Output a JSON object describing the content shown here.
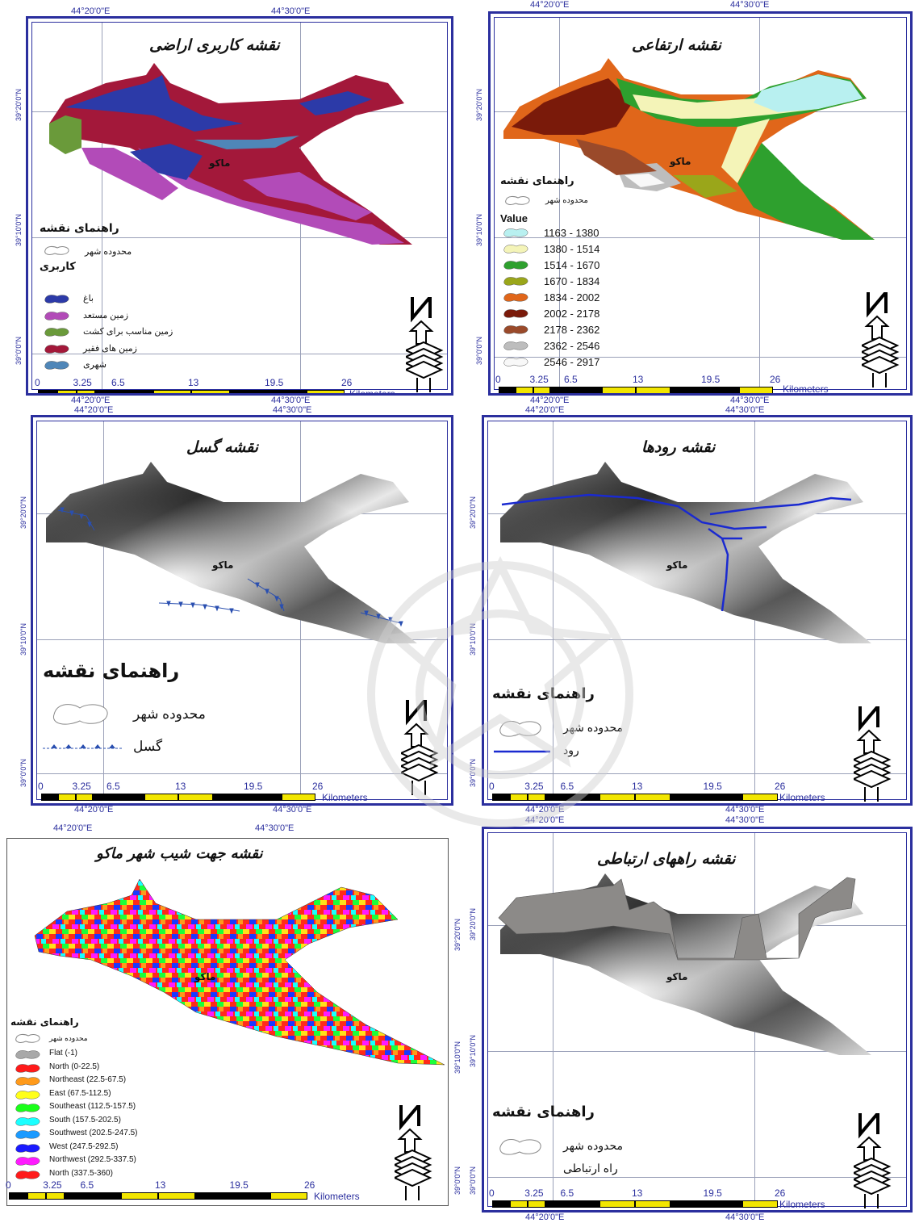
{
  "panels": {
    "landuse": {
      "title": "نقشه کاربری اراضی",
      "city": "ماکو",
      "legend_title": "راهنمای نقشه",
      "boundary_label": "محدوده شهر",
      "class_title": "کاربری",
      "classes": [
        {
          "label": "باغ",
          "color": "#2c3aa8"
        },
        {
          "label": "زمین مستعد",
          "color": "#b24bb8"
        },
        {
          "label": "زمین مناسب برای کشت",
          "color": "#6a9a3a"
        },
        {
          "label": "زمین های فقیر",
          "color": "#a3183a"
        },
        {
          "label": "شهری",
          "color": "#4f86b8"
        }
      ],
      "top_coords": [
        "44°20'0\"E",
        "44°30'0\"E"
      ],
      "bottom_coords": [
        "44°20'0\"E",
        "44°30'0\"E"
      ],
      "side_coords": [
        "39°20'0\"N",
        "39°10'0\"N",
        "39°0'0\"N"
      ],
      "scale": [
        "0",
        "3.25",
        "6.5",
        "13",
        "19.5",
        "26"
      ],
      "units": "Kilometers"
    },
    "elevation": {
      "title": "نقشه ارتفاعی",
      "city": "ماکو",
      "legend_title": "راهنمای نقشه",
      "boundary_label": "محدوده شهر",
      "value_title": "Value",
      "classes": [
        {
          "label": "1163 - 1380",
          "color": "#b8f0f0"
        },
        {
          "label": "1380 - 1514",
          "color": "#f4f4b8"
        },
        {
          "label": "1514 - 1670",
          "color": "#2ea02e"
        },
        {
          "label": "1670 - 1834",
          "color": "#9aa61a"
        },
        {
          "label": "1834 - 2002",
          "color": "#e0661a"
        },
        {
          "label": "2002 - 2178",
          "color": "#7a1a0a"
        },
        {
          "label": "2178 - 2362",
          "color": "#9a4a2a"
        },
        {
          "label": "2362 - 2546",
          "color": "#bdbdbd"
        },
        {
          "label": "2546 - 2917",
          "color": "#f8f8f8"
        }
      ],
      "top_coords": [
        "44°20'0\"E",
        "44°30'0\"E"
      ],
      "bottom_coords": [
        "44°20'0\"E",
        "44°30'0\"E"
      ],
      "side_coords": [
        "39°20'0\"N",
        "39°10'0\"N",
        "39°0'0\"N"
      ],
      "scale": [
        "0",
        "3.25",
        "6.5",
        "13",
        "19.5",
        "26"
      ],
      "units": "Kilometers"
    },
    "fault": {
      "title": "نقشه گسل",
      "city": "ماکو",
      "legend_title": "راهنمای نقشه",
      "boundary_label": "محدوده شهر",
      "fault_label": "گسل",
      "top_coords": [
        "44°20'0\"E",
        "44°30'0\"E"
      ],
      "bottom_coords": [
        "44°20'0\"E",
        "44°30'0\"E"
      ],
      "side_coords": [
        "39°20'0\"N",
        "39°10'0\"N",
        "39°0'0\"N"
      ],
      "scale": [
        "0",
        "3.25",
        "6.5",
        "13",
        "19.5",
        "26"
      ],
      "units": "Kilometers"
    },
    "rivers": {
      "title": "نقشه رودها",
      "city": "ماکو",
      "legend_title": "راهنمای نقشه",
      "boundary_label": "محدوده شهر",
      "river_label": "رود",
      "top_coords": [
        "44°20'0\"E",
        "44°30'0\"E"
      ],
      "bottom_coords": [
        "44°20'0\"E",
        "44°30'0\"E"
      ],
      "side_coords": [
        "39°20'0\"N",
        "39°10'0\"N",
        "39°0'0\"N"
      ],
      "scale": [
        "0",
        "3.25",
        "6.5",
        "13",
        "19.5",
        "26"
      ],
      "units": "Kilometers"
    },
    "aspect": {
      "title": "نقشه جهت شیب شهر ماکو",
      "city": "ماکو",
      "legend_title": "راهنمای نقشه",
      "boundary_label": "محدوده شهر",
      "classes": [
        {
          "label": "Flat (-1)",
          "color": "#a8a8a8"
        },
        {
          "label": "North (0-22.5)",
          "color": "#ff1a1a"
        },
        {
          "label": "Northeast (22.5-67.5)",
          "color": "#ff9a1a"
        },
        {
          "label": "East (67.5-112.5)",
          "color": "#ffff1a"
        },
        {
          "label": "Southeast (112.5-157.5)",
          "color": "#1aff1a"
        },
        {
          "label": "South (157.5-202.5)",
          "color": "#1affff"
        },
        {
          "label": "Southwest (202.5-247.5)",
          "color": "#1a9aff"
        },
        {
          "label": "West (247.5-292.5)",
          "color": "#1a1aff"
        },
        {
          "label": "Northwest (292.5-337.5)",
          "color": "#ff1aff"
        },
        {
          "label": "North (337.5-360)",
          "color": "#ff1a1a"
        }
      ],
      "top_coords": [
        "44°20'0\"E",
        "44°30'0\"E"
      ],
      "side_coords": [
        "39°20'0\"N",
        "39°10'0\"N",
        "39°0'0\"N"
      ],
      "scale": [
        "0",
        "3.25",
        "6.5",
        "13",
        "19.5",
        "26"
      ],
      "units": "Kilometers"
    },
    "roads": {
      "title": "نقشه راههای ارتباطی",
      "city": "ماکو",
      "legend_title": "راهنمای نقشه",
      "boundary_label": "محدوده شهر",
      "road_label": "راه ارتباطی",
      "top_coords": [
        "44°20'0\"E",
        "44°30'0\"E"
      ],
      "bottom_coords": [
        "44°20'0\"E",
        "44°30'0\"E"
      ],
      "side_coords": [
        "39°20'0\"N",
        "39°10'0\"N",
        "39°0'0\"N"
      ],
      "scale": [
        "0",
        "3.25",
        "6.5",
        "13",
        "19.5",
        "26"
      ],
      "units": "Kilometers"
    }
  }
}
